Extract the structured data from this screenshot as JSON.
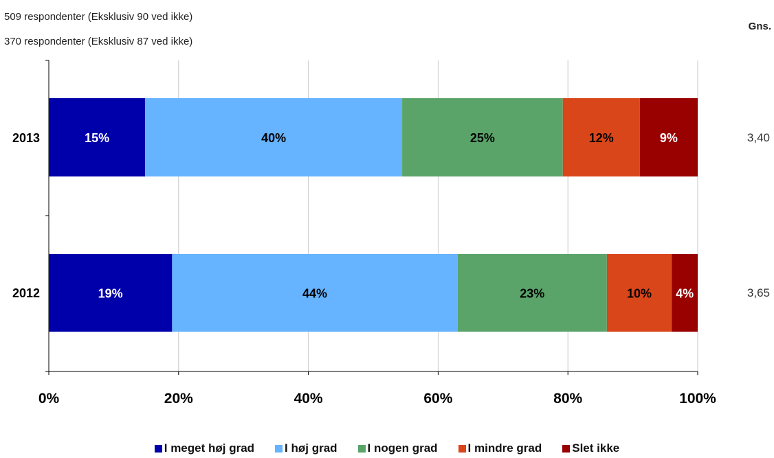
{
  "notes": [
    "509 respondenter (Eksklusiv 90 ved ikke)",
    "370 respondenter (Eksklusiv 87 ved ikke)"
  ],
  "gns_header": "Gns.",
  "chart_data": {
    "type": "bar",
    "orientation": "horizontal",
    "stacked": "percent",
    "categories": [
      "2013",
      "2012"
    ],
    "series": [
      {
        "name": "I meget høj grad",
        "values": [
          15,
          19
        ],
        "labels": [
          "15%",
          "19%"
        ],
        "color": "#0000aa",
        "label_color": "#ffffff"
      },
      {
        "name": "I høj grad",
        "values": [
          40,
          44
        ],
        "labels": [
          "40%",
          "44%"
        ],
        "color": "#66b3ff",
        "label_color": "#000000"
      },
      {
        "name": "I nogen grad",
        "values": [
          25,
          23
        ],
        "labels": [
          "25%",
          "23%"
        ],
        "color": "#5aa469",
        "label_color": "#000000"
      },
      {
        "name": "I mindre grad",
        "values": [
          12,
          10
        ],
        "labels": [
          "12%",
          "10%"
        ],
        "color": "#d9461a",
        "label_color": "#000000"
      },
      {
        "name": "Slet ikke",
        "values": [
          9,
          4
        ],
        "labels": [
          "9%",
          "4%"
        ],
        "color": "#990000",
        "label_color": "#ffffff"
      }
    ],
    "averages": [
      "3,40",
      "3,65"
    ],
    "xlim": [
      0,
      100
    ],
    "xticks": [
      "0%",
      "20%",
      "40%",
      "60%",
      "80%",
      "100%"
    ],
    "grid": true,
    "legend_position": "bottom"
  }
}
